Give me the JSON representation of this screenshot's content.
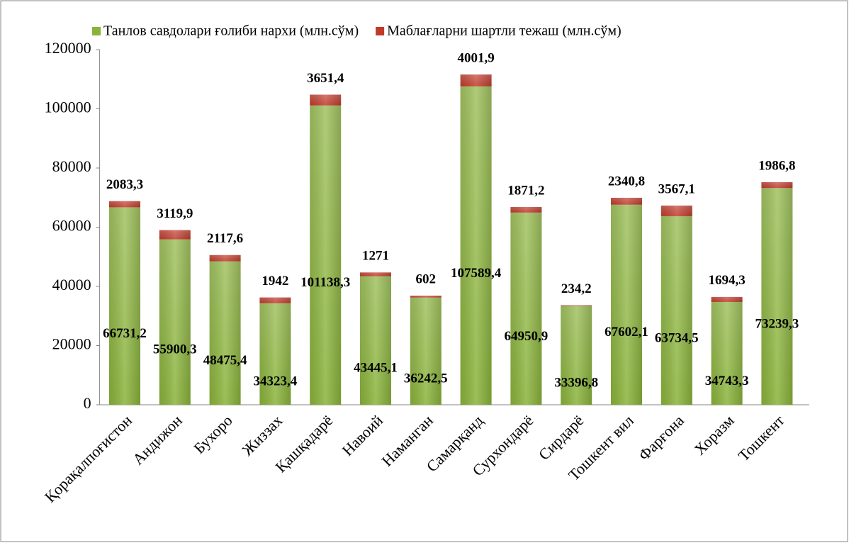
{
  "chart_data": {
    "type": "stacked_bar",
    "categories": [
      "Қорақалпоғистон",
      "Андижон",
      "Бухоро",
      "Жиззах",
      "Қашқадарё",
      "Навоий",
      "Наманган",
      "Самарқанд",
      "Сурхондарё",
      "Сирдарё",
      "Тошкент вил",
      "Фарғона",
      "Хоразм",
      "Тошкент"
    ],
    "series": [
      {
        "name": "Танлов савдолари ғолиби нархи (млн.сўм)",
        "color": "#8ab33a",
        "values": [
          66731.2,
          55900.3,
          48475.4,
          34323.4,
          101138.3,
          43445.1,
          36242.5,
          107589.4,
          64950.9,
          33396.8,
          67602.1,
          63734.5,
          34743.3,
          73239.3
        ],
        "value_labels": [
          "66731,2",
          "55900,3",
          "48475,4",
          "34323,4",
          "101138,3",
          "43445,1",
          "36242,5",
          "107589,4",
          "64950,9",
          "33396,8",
          "67602,1",
          "63734,5",
          "34743,3",
          "73239,3"
        ]
      },
      {
        "name": "Маблағларни шартли тежаш (млн.сўм)",
        "color": "#c0392b",
        "values": [
          2083.3,
          3119.9,
          2117.6,
          1942,
          3651.4,
          1271,
          602,
          4001.9,
          1871.2,
          234.2,
          2340.8,
          3567.1,
          1694.3,
          1986.8
        ],
        "value_labels": [
          "2083,3",
          "3119,9",
          "2117,6",
          "1942",
          "3651,4",
          "1271",
          "602",
          "4001,9",
          "1871,2",
          "234,2",
          "2340,8",
          "3567,1",
          "1694,3",
          "1986,8"
        ]
      }
    ],
    "ylim": [
      0,
      120000
    ],
    "yticks": [
      0,
      20000,
      40000,
      60000,
      80000,
      100000,
      120000
    ],
    "grid": false,
    "legend": "top"
  }
}
